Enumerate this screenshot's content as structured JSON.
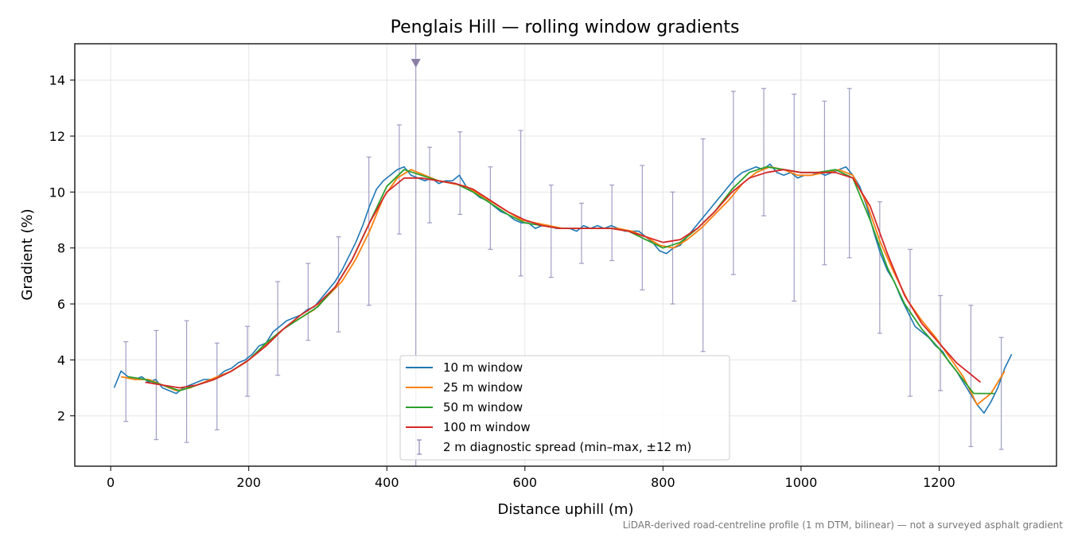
{
  "chart_data": {
    "type": "line",
    "title": "Penglais Hill — rolling window gradients",
    "xlabel": "Distance uphill (m)",
    "ylabel": "Gradient (%)",
    "xlim": [
      -52,
      1370
    ],
    "ylim": [
      0.2,
      15.3
    ],
    "xticks": [
      0,
      200,
      400,
      600,
      800,
      1000,
      1200
    ],
    "yticks": [
      2,
      4,
      6,
      8,
      10,
      12,
      14
    ],
    "grid": true,
    "legend_position": "bottom-center",
    "footnote": "LiDAR-derived road-centreline profile (1 m DTM, bilinear) — not a surveyed asphalt gradient",
    "series": [
      {
        "name": "10 m window",
        "color": "#1f77b4",
        "x": [
          5,
          15,
          25,
          35,
          45,
          55,
          65,
          75,
          85,
          95,
          105,
          115,
          125,
          135,
          145,
          155,
          165,
          175,
          185,
          195,
          205,
          215,
          225,
          235,
          245,
          255,
          265,
          275,
          285,
          295,
          305,
          315,
          325,
          335,
          345,
          355,
          365,
          375,
          385,
          395,
          405,
          415,
          425,
          435,
          445,
          455,
          465,
          475,
          485,
          495,
          505,
          515,
          525,
          535,
          545,
          555,
          565,
          575,
          585,
          595,
          605,
          615,
          625,
          635,
          645,
          655,
          665,
          675,
          685,
          695,
          705,
          715,
          725,
          735,
          745,
          755,
          765,
          775,
          785,
          795,
          805,
          815,
          825,
          835,
          845,
          855,
          865,
          875,
          885,
          895,
          905,
          915,
          925,
          935,
          945,
          955,
          965,
          975,
          985,
          995,
          1005,
          1015,
          1025,
          1035,
          1045,
          1055,
          1065,
          1075,
          1085,
          1095,
          1105,
          1115,
          1125,
          1135,
          1145,
          1155,
          1165,
          1175,
          1185,
          1195,
          1205,
          1215,
          1225,
          1235,
          1245,
          1255,
          1265,
          1275,
          1285,
          1295,
          1305
        ],
        "y": [
          3.0,
          3.6,
          3.4,
          3.3,
          3.4,
          3.2,
          3.3,
          3.0,
          2.9,
          2.8,
          3.0,
          3.1,
          3.2,
          3.3,
          3.3,
          3.4,
          3.6,
          3.7,
          3.9,
          4.0,
          4.2,
          4.5,
          4.6,
          5.0,
          5.2,
          5.4,
          5.5,
          5.6,
          5.8,
          5.9,
          6.2,
          6.5,
          6.8,
          7.2,
          7.7,
          8.2,
          8.8,
          9.5,
          10.1,
          10.4,
          10.6,
          10.8,
          10.9,
          10.6,
          10.5,
          10.4,
          10.5,
          10.3,
          10.4,
          10.4,
          10.6,
          10.2,
          10.0,
          9.8,
          9.7,
          9.5,
          9.3,
          9.2,
          9.0,
          8.9,
          8.9,
          8.7,
          8.8,
          8.8,
          8.7,
          8.7,
          8.7,
          8.6,
          8.8,
          8.7,
          8.8,
          8.7,
          8.8,
          8.7,
          8.6,
          8.6,
          8.6,
          8.4,
          8.2,
          7.9,
          7.8,
          8.0,
          8.1,
          8.4,
          8.7,
          9.0,
          9.3,
          9.6,
          9.9,
          10.2,
          10.5,
          10.7,
          10.8,
          10.9,
          10.8,
          11.0,
          10.7,
          10.6,
          10.7,
          10.5,
          10.6,
          10.6,
          10.7,
          10.6,
          10.7,
          10.8,
          10.9,
          10.6,
          10.2,
          9.5,
          8.6,
          7.8,
          7.2,
          6.8,
          6.2,
          5.7,
          5.2,
          5.0,
          4.8,
          4.5,
          4.3,
          3.9,
          3.6,
          3.2,
          2.8,
          2.4,
          2.1,
          2.5,
          3.0,
          3.7,
          4.2
        ]
      },
      {
        "name": "25 m window",
        "color": "#ff7f0e",
        "x": [
          15,
          35,
          55,
          75,
          95,
          115,
          135,
          155,
          175,
          195,
          215,
          235,
          255,
          275,
          295,
          315,
          335,
          355,
          375,
          395,
          415,
          435,
          455,
          475,
          495,
          515,
          535,
          555,
          575,
          595,
          615,
          635,
          655,
          675,
          695,
          715,
          735,
          755,
          775,
          795,
          815,
          835,
          855,
          875,
          895,
          915,
          935,
          955,
          975,
          995,
          1015,
          1035,
          1055,
          1075,
          1095,
          1115,
          1135,
          1155,
          1175,
          1195,
          1215,
          1235,
          1255,
          1275,
          1295
        ],
        "y": [
          3.4,
          3.3,
          3.3,
          3.1,
          2.9,
          3.0,
          3.2,
          3.4,
          3.6,
          3.9,
          4.3,
          4.8,
          5.2,
          5.5,
          5.8,
          6.3,
          6.8,
          7.6,
          8.6,
          9.8,
          10.5,
          10.8,
          10.6,
          10.4,
          10.3,
          10.2,
          9.9,
          9.6,
          9.3,
          9.0,
          8.9,
          8.8,
          8.7,
          8.7,
          8.7,
          8.7,
          8.7,
          8.6,
          8.4,
          8.1,
          8.0,
          8.3,
          8.7,
          9.2,
          9.7,
          10.3,
          10.7,
          10.9,
          10.8,
          10.6,
          10.6,
          10.7,
          10.8,
          10.6,
          9.6,
          8.2,
          7.1,
          6.1,
          5.4,
          4.8,
          4.1,
          3.4,
          2.4,
          2.8,
          3.6
        ]
      },
      {
        "name": "50 m window",
        "color": "#2ca02c",
        "x": [
          25,
          50,
          75,
          100,
          125,
          150,
          175,
          200,
          225,
          250,
          275,
          300,
          325,
          350,
          375,
          400,
          425,
          450,
          475,
          500,
          525,
          550,
          575,
          600,
          625,
          650,
          675,
          700,
          725,
          750,
          775,
          800,
          825,
          850,
          875,
          900,
          925,
          950,
          975,
          1000,
          1025,
          1050,
          1075,
          1100,
          1125,
          1150,
          1175,
          1200,
          1225,
          1250,
          1280
        ],
        "y": [
          3.4,
          3.3,
          3.1,
          2.9,
          3.1,
          3.3,
          3.6,
          4.0,
          4.6,
          5.1,
          5.5,
          5.9,
          6.6,
          7.6,
          8.9,
          10.2,
          10.8,
          10.6,
          10.4,
          10.3,
          10.0,
          9.6,
          9.2,
          8.9,
          8.8,
          8.7,
          8.7,
          8.7,
          8.7,
          8.6,
          8.3,
          8.0,
          8.2,
          8.7,
          9.3,
          10.1,
          10.7,
          10.9,
          10.8,
          10.7,
          10.7,
          10.8,
          10.5,
          9.0,
          7.3,
          6.0,
          5.1,
          4.4,
          3.6,
          2.8,
          2.8
        ]
      },
      {
        "name": "100 m window",
        "color": "#d62728",
        "x": [
          50,
          75,
          100,
          125,
          150,
          175,
          200,
          225,
          250,
          275,
          300,
          325,
          350,
          375,
          400,
          425,
          450,
          475,
          500,
          525,
          550,
          575,
          600,
          625,
          650,
          675,
          700,
          725,
          750,
          775,
          800,
          825,
          850,
          875,
          900,
          925,
          950,
          975,
          1000,
          1025,
          1050,
          1075,
          1100,
          1125,
          1150,
          1175,
          1200,
          1225,
          1260
        ],
        "y": [
          3.2,
          3.1,
          3.0,
          3.1,
          3.3,
          3.6,
          4.0,
          4.5,
          5.1,
          5.6,
          6.0,
          6.6,
          7.6,
          8.9,
          10.0,
          10.5,
          10.5,
          10.4,
          10.3,
          10.1,
          9.7,
          9.3,
          9.0,
          8.8,
          8.7,
          8.7,
          8.7,
          8.7,
          8.6,
          8.4,
          8.2,
          8.3,
          8.7,
          9.3,
          10.0,
          10.5,
          10.7,
          10.8,
          10.7,
          10.7,
          10.7,
          10.5,
          9.5,
          7.8,
          6.3,
          5.3,
          4.6,
          3.9,
          3.2
        ]
      }
    ],
    "diagnostic": {
      "name": "2 m diagnostic spread (min–max, ±12 m)",
      "color": "#8a87b5",
      "x": [
        22,
        66,
        110,
        154,
        198,
        242,
        286,
        330,
        374,
        418,
        442,
        462,
        506,
        550,
        594,
        638,
        682,
        726,
        770,
        814,
        858,
        902,
        946,
        990,
        1034,
        1070,
        1114,
        1158,
        1202,
        1246,
        1290
      ],
      "min": [
        1.8,
        1.15,
        1.05,
        1.5,
        2.7,
        3.45,
        4.7,
        5.0,
        5.95,
        8.5,
        null,
        8.9,
        9.2,
        7.95,
        7.0,
        6.95,
        7.45,
        7.55,
        6.5,
        6.0,
        4.3,
        7.05,
        9.15,
        6.1,
        7.4,
        7.65,
        4.95,
        2.7,
        2.9,
        0.9,
        0.8
      ],
      "max": [
        4.65,
        5.05,
        5.4,
        4.6,
        5.2,
        6.8,
        7.45,
        8.4,
        11.25,
        12.4,
        null,
        11.6,
        12.15,
        10.9,
        12.2,
        10.25,
        9.6,
        10.25,
        10.95,
        10.0,
        11.9,
        13.6,
        13.7,
        13.5,
        13.25,
        13.7,
        9.65,
        7.95,
        6.3,
        5.95,
        4.8
      ],
      "clipped_marker_x": 442
    }
  }
}
